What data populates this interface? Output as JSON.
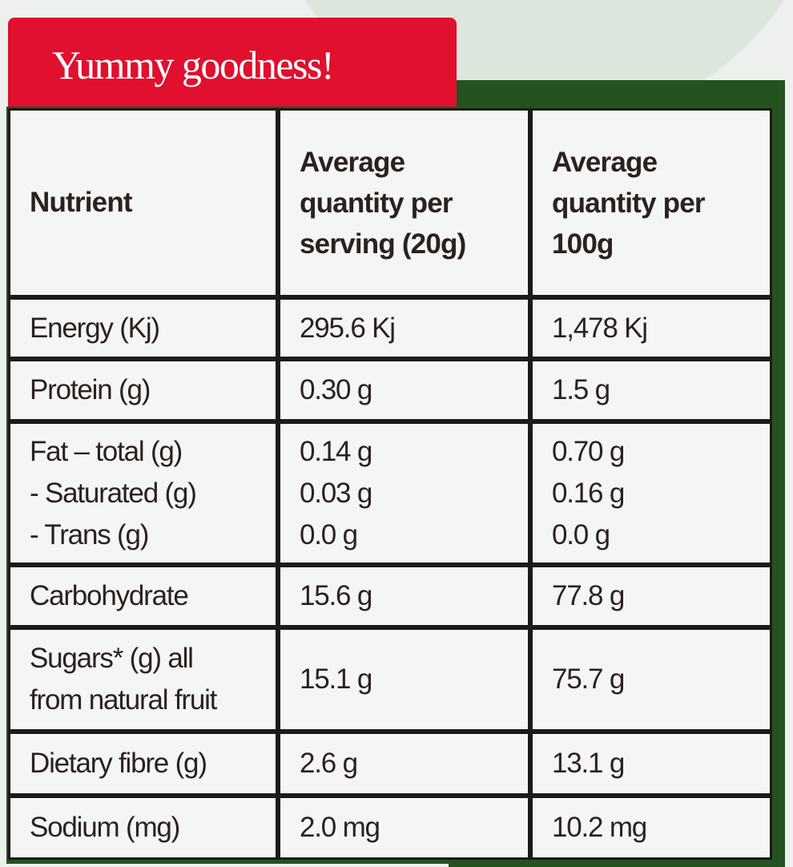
{
  "banner": "Yummy goodness!",
  "headers": [
    "Nutrient",
    "Average quantity per serving (20g)",
    "Average quantity per 100g"
  ],
  "rows": [
    {
      "nutrient": [
        "Energy (Kj)"
      ],
      "serving": [
        "295.6 Kj"
      ],
      "per100": [
        "1,478 Kj"
      ]
    },
    {
      "nutrient": [
        "Protein (g)"
      ],
      "serving": [
        "0.30 g"
      ],
      "per100": [
        "1.5 g"
      ]
    },
    {
      "nutrient": [
        "Fat – total (g)",
        "- Saturated (g)",
        "- Trans (g)"
      ],
      "serving": [
        "0.14 g",
        "0.03 g",
        "0.0 g"
      ],
      "per100": [
        "0.70 g",
        "0.16 g",
        "0.0 g"
      ]
    },
    {
      "nutrient": [
        "Carbohydrate"
      ],
      "serving": [
        "15.6 g"
      ],
      "per100": [
        "77.8 g"
      ]
    },
    {
      "nutrient": [
        "Sugars* (g) all",
        "from natural fruit"
      ],
      "serving": [
        "15.1 g"
      ],
      "per100": [
        "75.7 g"
      ]
    },
    {
      "nutrient": [
        "Dietary fibre (g)"
      ],
      "serving": [
        "2.6 g"
      ],
      "per100": [
        "13.1 g"
      ]
    },
    {
      "nutrient": [
        "Sodium (mg)"
      ],
      "serving": [
        "2.0 mg"
      ],
      "per100": [
        "10.2 mg"
      ]
    }
  ],
  "colors": {
    "banner": "#e0102e",
    "frame": "#24531f"
  }
}
